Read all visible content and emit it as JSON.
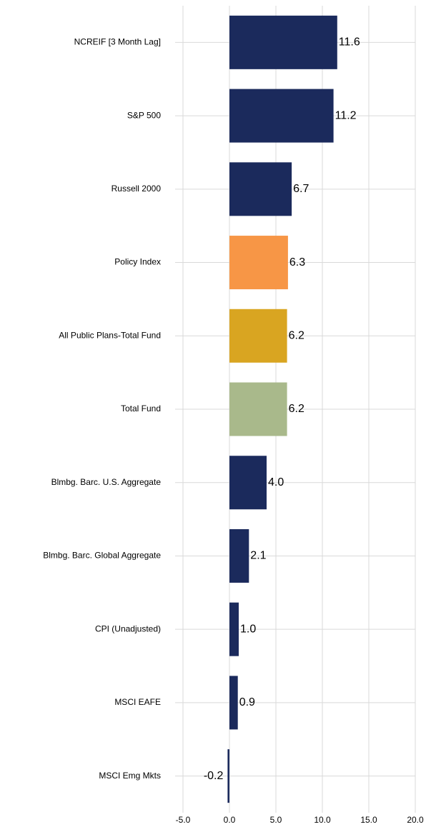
{
  "chart_data": {
    "type": "barh",
    "categories": [
      "NCREIF [3 Month Lag]",
      "S&P 500",
      "Russell 2000",
      "Policy Index",
      "All Public Plans-Total Fund",
      "Total Fund",
      "Blmbg. Barc. U.S. Aggregate",
      "Blmbg. Barc. Global Aggregate",
      "CPI (Unadjusted)",
      "MSCI EAFE",
      "MSCI Emg Mkts"
    ],
    "values": [
      11.6,
      11.2,
      6.7,
      6.3,
      6.2,
      6.2,
      4.0,
      2.1,
      1.0,
      0.9,
      -0.2
    ],
    "value_labels": [
      "11.6",
      "11.2",
      "6.7",
      "6.3",
      "6.2",
      "6.2",
      "4.0",
      "2.1",
      "1.0",
      "0.9",
      "-0.2"
    ],
    "colors": [
      "#1b2a5c",
      "#1b2a5c",
      "#1b2a5c",
      "#f79646",
      "#d9a521",
      "#a9b98b",
      "#1b2a5c",
      "#1b2a5c",
      "#1b2a5c",
      "#1b2a5c",
      "#1b2a5c"
    ],
    "xlim": [
      -5,
      20
    ],
    "xticks": [
      {
        "value": -5,
        "label": "-5.0"
      },
      {
        "value": 0,
        "label": "0.0"
      },
      {
        "value": 5,
        "label": "5.0"
      },
      {
        "value": 10,
        "label": "10.0"
      },
      {
        "value": 15,
        "label": "15.0"
      },
      {
        "value": 20,
        "label": "20.0"
      }
    ],
    "grid": true
  }
}
